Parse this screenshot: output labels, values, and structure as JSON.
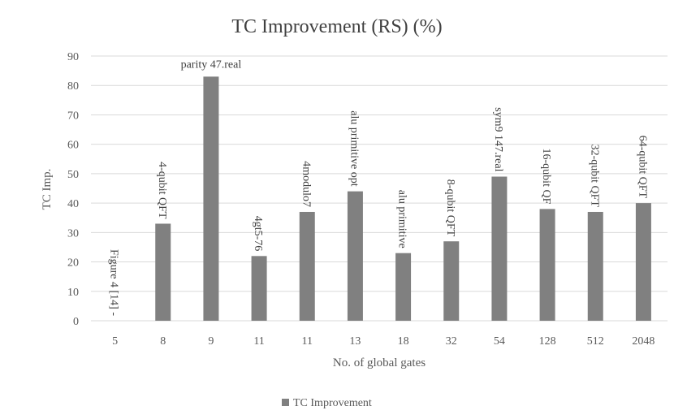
{
  "chart_data": {
    "type": "bar",
    "title": "TC Improvement (RS) (%)",
    "xlabel": "No. of global gates",
    "ylabel": "TC Imp.",
    "ylim": [
      0,
      90
    ],
    "yticks": [
      0,
      10,
      20,
      30,
      40,
      50,
      60,
      70,
      80,
      90
    ],
    "grid": true,
    "legend_position": "bottom",
    "categories": [
      "5",
      "8",
      "9",
      "11",
      "11",
      "13",
      "18",
      "32",
      "54",
      "128",
      "512",
      "2048"
    ],
    "series": [
      {
        "name": "TC Improvement",
        "color": "#808080",
        "values": [
          0,
          33,
          83,
          22,
          37,
          44,
          23,
          27,
          49,
          38,
          37,
          40
        ]
      }
    ],
    "bar_labels": [
      "Figure 4 [14] -",
      "4-qubit QFT",
      "parity 47.real",
      "4gt5-76",
      "4modulo7",
      "alu primitive opt",
      "alu primitive",
      "8-qubit QFT",
      "sym9 147.real",
      "16-qubit QF",
      "32-qubit QFT",
      "64-qubit QFT"
    ]
  }
}
